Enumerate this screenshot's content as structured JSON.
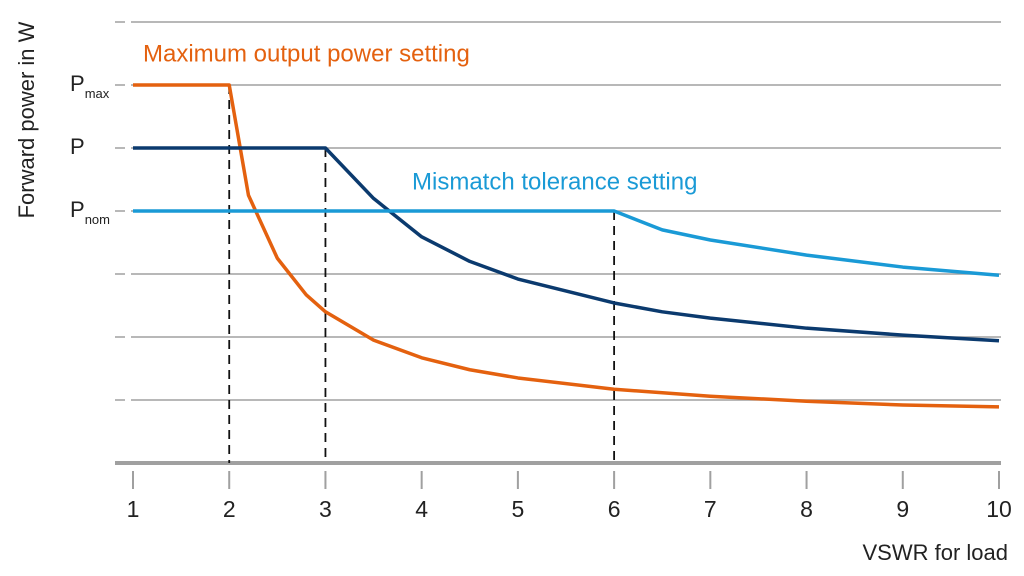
{
  "chart_data": {
    "type": "line",
    "y_label": "Forward power in W",
    "x_label": "VSWR for load",
    "xlim": [
      1,
      10
    ],
    "xticks": [
      1,
      2,
      3,
      4,
      5,
      6,
      7,
      8,
      9,
      10
    ],
    "ylim": [
      0,
      7.2
    ],
    "yticks": [
      {
        "value": 1,
        "label": null
      },
      {
        "value": 2,
        "label": null
      },
      {
        "value": 3,
        "label": null
      },
      {
        "value": 4,
        "label": "P",
        "subscript": "nom"
      },
      {
        "value": 5,
        "label": "P"
      },
      {
        "value": 6,
        "label": "P",
        "subscript": "max"
      },
      {
        "value": 7,
        "label": null
      }
    ],
    "grid": true,
    "series": [
      {
        "name": "Maximum output power setting",
        "color": "#e4610f",
        "x": [
          1,
          2,
          2.2,
          2.5,
          2.8,
          3,
          3.5,
          4,
          4.5,
          5,
          6,
          7,
          8,
          9,
          10
        ],
        "values": [
          6,
          6,
          4.25,
          3.25,
          2.67,
          2.4,
          1.95,
          1.67,
          1.48,
          1.35,
          1.17,
          1.06,
          0.98,
          0.92,
          0.89
        ]
      },
      {
        "color": "#0b3a6e",
        "x": [
          1,
          3,
          3.5,
          4,
          4.5,
          5,
          6,
          6.5,
          7,
          8,
          9,
          10
        ],
        "values": [
          5,
          5,
          4.2,
          3.59,
          3.2,
          2.92,
          2.54,
          2.4,
          2.3,
          2.14,
          2.03,
          1.94
        ]
      },
      {
        "name": "Mismatch tolerance setting",
        "color": "#1a9ad6",
        "x": [
          1,
          6,
          6.5,
          7,
          8,
          9,
          10
        ],
        "values": [
          4,
          4,
          3.7,
          3.54,
          3.3,
          3.11,
          2.98
        ]
      }
    ],
    "reference_lines": [
      {
        "x": 2,
        "y": 6
      },
      {
        "x": 3,
        "y": 5
      },
      {
        "x": 6,
        "y": 4
      }
    ]
  }
}
